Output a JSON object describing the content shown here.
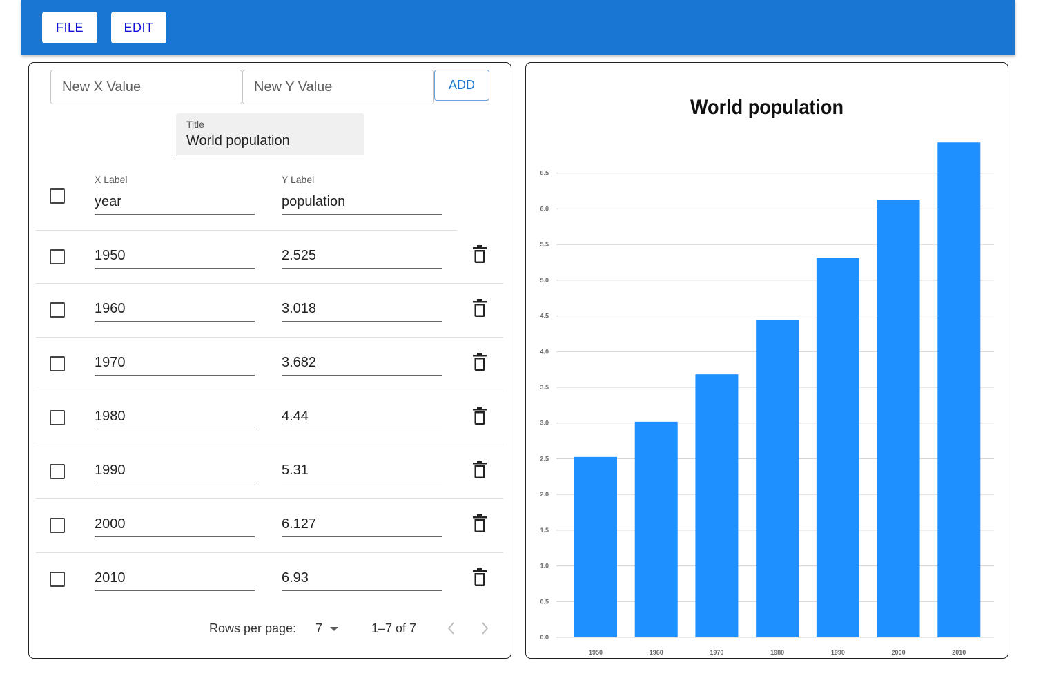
{
  "appbar": {
    "file_label": "FILE",
    "edit_label": "EDIT"
  },
  "add_row": {
    "x_placeholder": "New X Value",
    "y_placeholder": "New Y Value",
    "add_label": "ADD"
  },
  "title_field": {
    "label": "Title",
    "value": "World population"
  },
  "table": {
    "x_label_caption": "X Label",
    "x_label_value": "year",
    "y_label_caption": "Y Label",
    "y_label_value": "population",
    "rows": [
      {
        "x": "1950",
        "y": "2.525"
      },
      {
        "x": "1960",
        "y": "3.018"
      },
      {
        "x": "1970",
        "y": "3.682"
      },
      {
        "x": "1980",
        "y": "4.44"
      },
      {
        "x": "1990",
        "y": "5.31"
      },
      {
        "x": "2000",
        "y": "6.127"
      },
      {
        "x": "2010",
        "y": "6.93"
      }
    ]
  },
  "pagination": {
    "rows_per_page_label": "Rows per page:",
    "rows_per_page_value": "7",
    "range_text": "1–7 of 7"
  },
  "icons": {
    "delete": "trash-icon",
    "dropdown": "caret-down-icon",
    "prev": "chevron-left-icon",
    "next": "chevron-right-icon"
  },
  "colors": {
    "appbar": "#1976d2",
    "bar": "#1e90ff",
    "button_text": "#1212d8"
  },
  "chart_data": {
    "type": "bar",
    "title": "World population",
    "categories": [
      "1950",
      "1960",
      "1970",
      "1980",
      "1990",
      "2000",
      "2010"
    ],
    "values": [
      2.525,
      3.018,
      3.682,
      4.44,
      5.31,
      6.127,
      6.93
    ],
    "yticks": [
      "0.0",
      "0.5",
      "1.0",
      "1.5",
      "2.0",
      "2.5",
      "3.0",
      "3.5",
      "4.0",
      "4.5",
      "5.0",
      "5.5",
      "6.0",
      "6.5"
    ],
    "ylim": [
      0,
      7
    ],
    "grid": true,
    "legend": "none"
  }
}
